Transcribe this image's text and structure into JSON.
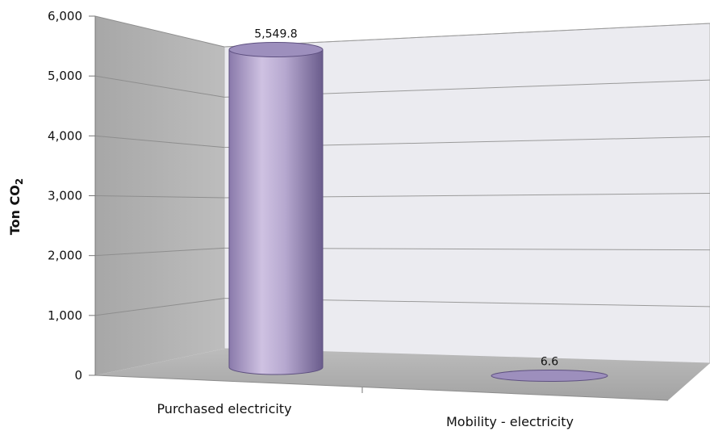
{
  "chart_data": {
    "type": "bar",
    "style": "3d-cylinder",
    "categories": [
      "Purchased electricity",
      "Mobility - electricity"
    ],
    "values": [
      5549.8,
      6.6
    ],
    "data_labels": [
      "5,549.8",
      "6.6"
    ],
    "title": "",
    "xlabel": "",
    "ylabel": "Ton CO",
    "ylabel_subscript": "2",
    "ylim": [
      0,
      6000
    ],
    "yticks": [
      0,
      1000,
      2000,
      3000,
      4000,
      5000,
      6000
    ],
    "ytick_labels": [
      "0",
      "1,000",
      "2,000",
      "3,000",
      "4,000",
      "5,000",
      "6,000"
    ],
    "grid": true,
    "legend": "none",
    "colors": {
      "bar_light": "#cdbfe0",
      "bar_mid": "#a999c4",
      "bar_dark": "#6f6190",
      "bar_top": "#9d8fbd",
      "side_wall": "#b3b3b3",
      "back_wall": "#e9e9ee",
      "floor": "#ababab"
    }
  }
}
